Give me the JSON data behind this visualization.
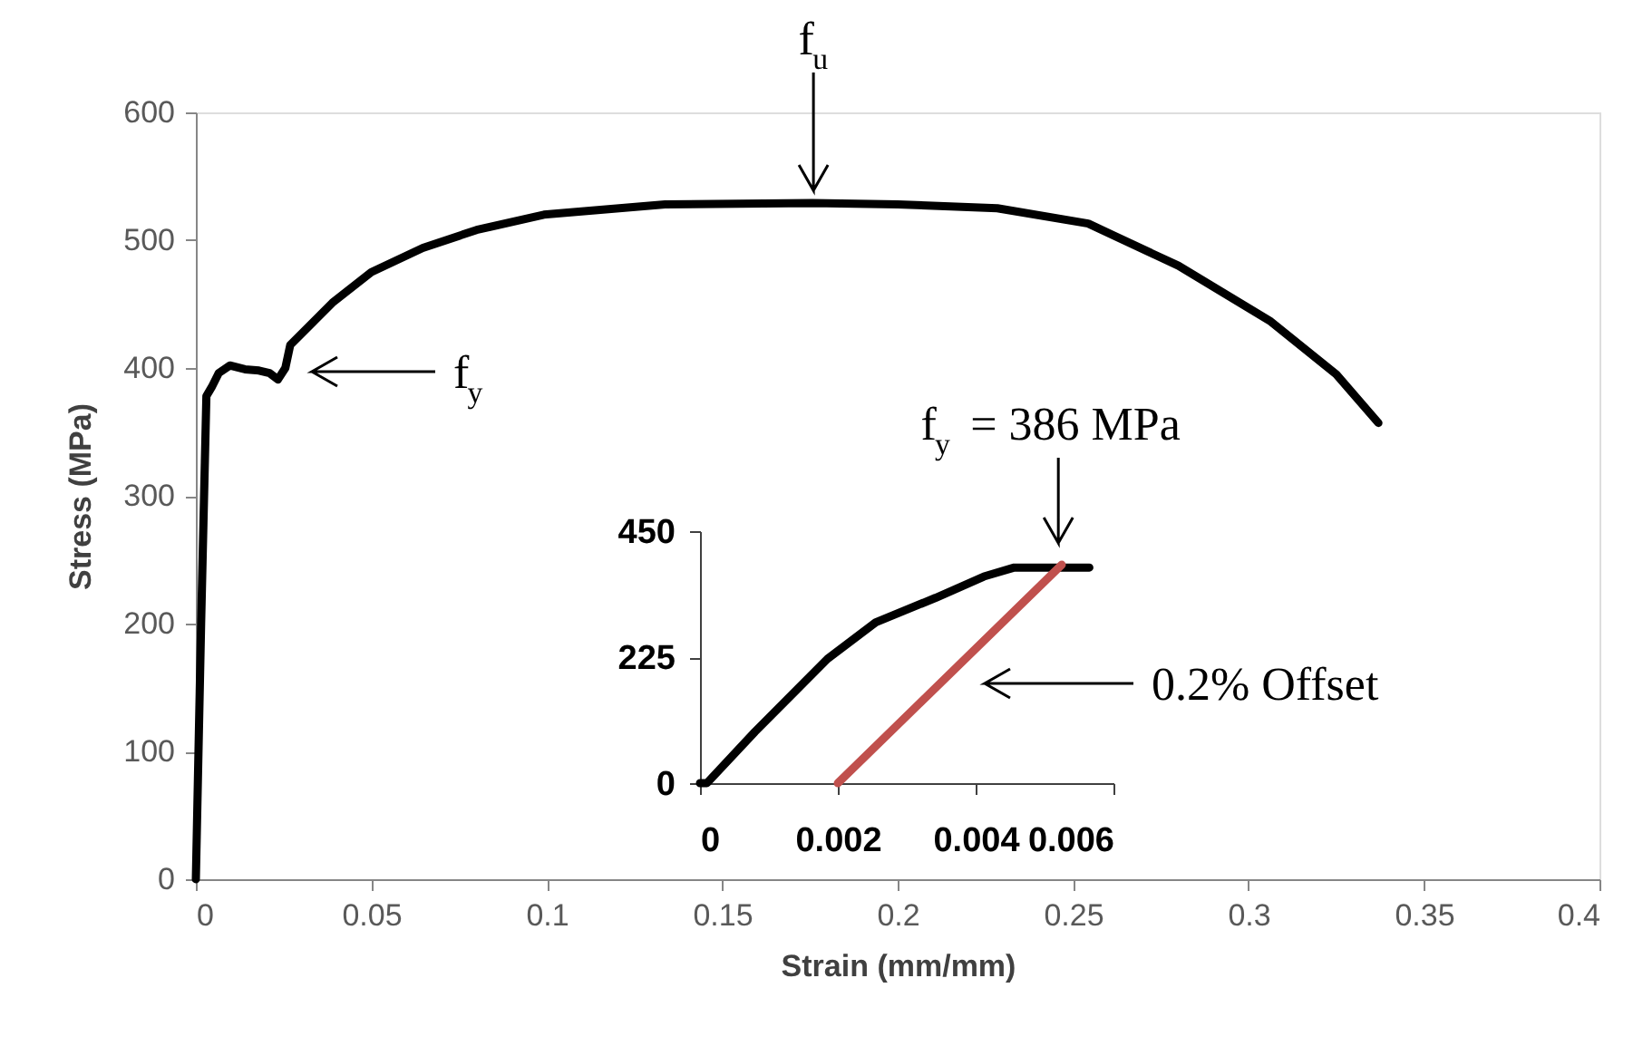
{
  "chart_data": [
    {
      "type": "line",
      "xlabel": "Strain (mm/mm)",
      "ylabel": "Stress (MPa)",
      "xlim": [
        0,
        0.4
      ],
      "ylim": [
        0,
        600
      ],
      "xticks": [
        0,
        0.05,
        0.1,
        0.15,
        0.2,
        0.25,
        0.3,
        0.35,
        0.4
      ],
      "yticks": [
        0,
        100,
        200,
        300,
        400,
        500,
        600
      ],
      "grid": false,
      "marker": "none",
      "line_style": "solid",
      "series": [
        {
          "color": "#000000",
          "x": [
            0,
            0.0015,
            0.003,
            0.0045,
            0.0065,
            0.0097,
            0.014,
            0.018,
            0.021,
            0.0234,
            0.0255,
            0.0269,
            0.032,
            0.0389,
            0.05,
            0.0647,
            0.08,
            0.0992,
            0.1337,
            0.1757,
            0.2,
            0.2284,
            0.2543,
            0.28,
            0.306,
            0.325,
            0.337
          ],
          "values": [
            0,
            200,
            378,
            385,
            396,
            402,
            399,
            398,
            396,
            391,
            400,
            418,
            432,
            451,
            475,
            494,
            508,
            520,
            528,
            529,
            528,
            525,
            513,
            480,
            437,
            395,
            357
          ]
        }
      ],
      "annotations": [
        {
          "text": "f$_{u}$",
          "x": 0.176,
          "y": 529
        },
        "f$_{y}$"
      ]
    },
    {
      "type": "line",
      "xlim": [
        0,
        0.006
      ],
      "ylim": [
        0,
        450
      ],
      "xticks": [
        0,
        0.002,
        0.004,
        0.006
      ],
      "yticks": [
        0,
        225,
        450
      ],
      "grid": false,
      "marker": "none",
      "line_style": "solid",
      "series": [
        {
          "color": "#000000",
          "x": [
            0,
            0.0001,
            0.0008,
            0.00185,
            0.00255,
            0.00342,
            0.00412,
            0.00456,
            0.00565
          ],
          "values": [
            0,
            0,
            92,
            222,
            287,
            331,
            369,
            385,
            385
          ]
        },
        {
          "color": "#c0504d",
          "x": [
            0.002,
            0.00525
          ],
          "values": [
            0,
            390
          ]
        }
      ],
      "annotations": [
        {
          "text": "f$_{y}$ = 386 MPa",
          "x": 0.0052,
          "y": 390
        },
        "0.2% Offset"
      ]
    }
  ]
}
